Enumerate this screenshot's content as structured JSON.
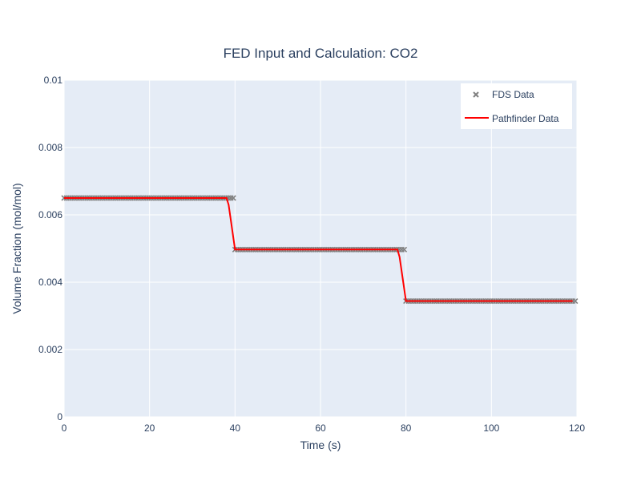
{
  "chart_data": {
    "type": "line",
    "title": "FED Input and Calculation: CO2",
    "xlabel": "Time (s)",
    "ylabel": "Volume Fraction (mol/mol)",
    "xlim": [
      0,
      120
    ],
    "ylim": [
      0,
      0.01
    ],
    "x_ticks": [
      "0",
      "20",
      "40",
      "60",
      "80",
      "100",
      "120"
    ],
    "y_ticks": [
      "0",
      "0.002",
      "0.004",
      "0.006",
      "0.008",
      "0.01"
    ],
    "grid": true,
    "legend_position": "top-right",
    "series": [
      {
        "name": "FDS Data",
        "mode": "markers",
        "marker": "x",
        "color": "#808080",
        "segments": [
          {
            "x_start": 0,
            "x_end": 40,
            "y": 0.0065
          },
          {
            "x_start": 40,
            "x_end": 80,
            "y": 0.00497
          },
          {
            "x_start": 80,
            "x_end": 120,
            "y": 0.00344
          }
        ]
      },
      {
        "name": "Pathfinder Data",
        "mode": "line",
        "color": "#ff0000",
        "x": [
          0,
          38,
          38.5,
          40,
          78,
          78.5,
          80,
          119
        ],
        "y": [
          0.0065,
          0.0065,
          0.0063,
          0.00497,
          0.00497,
          0.00475,
          0.00344,
          0.00344
        ]
      }
    ]
  }
}
